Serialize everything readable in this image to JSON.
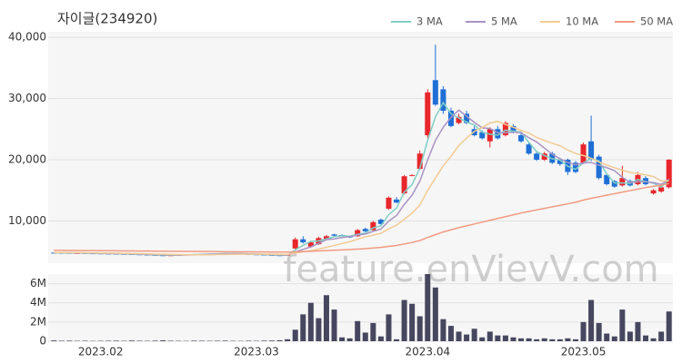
{
  "chart_data": [
    {
      "type": "candlestick",
      "title": "자이글(234920)",
      "watermark": "feature.enVievV.com",
      "up_color": "#e8262b",
      "down_color": "#1f6fd6",
      "legend": "top-right",
      "grid": true,
      "ylim": [
        3100,
        40900
      ],
      "yticks": [
        {
          "value": 10000,
          "label": "10,000"
        },
        {
          "value": 20000,
          "label": "20,000"
        },
        {
          "value": 30000,
          "label": "30,000"
        },
        {
          "value": 40000,
          "label": "40,000"
        }
      ],
      "open": [
        4820,
        4800,
        4780,
        4750,
        4760,
        4720,
        4700,
        4680,
        4650,
        4620,
        4600,
        4550,
        4500,
        4450,
        4400,
        4380,
        4400,
        4450,
        4500,
        4550,
        4600,
        4650,
        4680,
        4700,
        4650,
        4600,
        4550,
        4500,
        4450,
        4400,
        4350,
        5500,
        7000,
        5800,
        6200,
        7000,
        7800,
        7700,
        7500,
        7500,
        8700,
        8500,
        10200,
        12000,
        13500,
        14500,
        17400,
        18500,
        24000,
        33000,
        31500,
        28000,
        26000,
        27500,
        25000,
        24500,
        23000,
        25000,
        24000,
        25500,
        24000,
        22500,
        21000,
        20000,
        21000,
        20000,
        20000,
        19500,
        19500,
        23000,
        20500,
        17500,
        16500,
        15800,
        16500,
        16000,
        17000,
        14500,
        14800,
        15500
      ],
      "high": [
        4870,
        4850,
        4830,
        4800,
        4810,
        4770,
        4750,
        4730,
        4700,
        4670,
        4650,
        4600,
        4550,
        4500,
        4450,
        4450,
        4500,
        4550,
        4600,
        4650,
        4700,
        4730,
        4750,
        4750,
        4700,
        4650,
        4600,
        4550,
        4500,
        4450,
        4550,
        7300,
        7500,
        6700,
        7400,
        7700,
        7900,
        7800,
        7600,
        8700,
        8900,
        10000,
        10400,
        14000,
        13900,
        17500,
        17600,
        21500,
        31500,
        38800,
        32000,
        28500,
        27500,
        28000,
        25500,
        24800,
        25300,
        25500,
        26300,
        25800,
        24300,
        22800,
        21300,
        21300,
        21300,
        20300,
        20200,
        19800,
        22800,
        27200,
        20800,
        17800,
        16700,
        19000,
        16800,
        18000,
        17300,
        15200,
        15800,
        20100
      ],
      "low": [
        4770,
        4730,
        4700,
        4700,
        4670,
        4650,
        4630,
        4600,
        4570,
        4550,
        4500,
        4450,
        4400,
        4350,
        4330,
        4330,
        4350,
        4400,
        4450,
        4500,
        4550,
        4600,
        4630,
        4600,
        4550,
        4500,
        4450,
        4400,
        4350,
        4300,
        4300,
        5400,
        6300,
        5600,
        6100,
        6900,
        7500,
        7500,
        7200,
        7400,
        8200,
        8400,
        9400,
        11800,
        12900,
        14300,
        17300,
        18300,
        23500,
        28800,
        27500,
        25300,
        25800,
        25800,
        23800,
        23300,
        22000,
        23300,
        23800,
        24300,
        22800,
        20800,
        19800,
        19800,
        19300,
        19000,
        17500,
        17800,
        19300,
        19800,
        16800,
        15800,
        15400,
        15600,
        15600,
        15800,
        15800,
        14300,
        14600,
        15300
      ],
      "close": [
        4800,
        4780,
        4750,
        4760,
        4720,
        4700,
        4680,
        4650,
        4620,
        4600,
        4550,
        4500,
        4450,
        4400,
        4380,
        4400,
        4450,
        4500,
        4550,
        4600,
        4650,
        4680,
        4700,
        4650,
        4600,
        4550,
        4500,
        4450,
        4400,
        4350,
        4500,
        7000,
        6500,
        6500,
        7200,
        7500,
        7600,
        7600,
        7300,
        8500,
        8300,
        9800,
        9500,
        13800,
        13000,
        17300,
        17500,
        21000,
        31000,
        29000,
        28000,
        25500,
        27000,
        26000,
        24000,
        23500,
        25000,
        23500,
        26000,
        24500,
        23000,
        21000,
        20000,
        21000,
        19500,
        19300,
        18000,
        18000,
        22500,
        20000,
        17000,
        16000,
        15600,
        17000,
        15800,
        17500,
        16000,
        15000,
        15500,
        20000
      ],
      "series": [
        {
          "name": "3 MA",
          "color": "#7fcfc6",
          "values": [
            4820,
            4800,
            4777,
            4763,
            4743,
            4727,
            4700,
            4677,
            4650,
            4623,
            4590,
            4550,
            4500,
            4450,
            4410,
            4393,
            4410,
            4450,
            4500,
            4550,
            4600,
            4643,
            4677,
            4677,
            4650,
            4600,
            4550,
            4500,
            4450,
            4400,
            4417,
            5283,
            6000,
            6667,
            6733,
            7067,
            7433,
            7567,
            7500,
            7800,
            8033,
            8867,
            9200,
            11033,
            12100,
            14700,
            15933,
            18600,
            23167,
            27000,
            29333,
            27500,
            26833,
            26167,
            25667,
            24500,
            24167,
            24000,
            24833,
            24667,
            24500,
            22833,
            21333,
            20667,
            20167,
            19933,
            18933,
            18433,
            19500,
            20167,
            19833,
            17667,
            16200,
            16200,
            16133,
            16767,
            16433,
            16167,
            15500,
            16833
          ]
        },
        {
          "name": "5 MA",
          "color": "#a893c4",
          "values": [
            4830,
            4815,
            4800,
            4780,
            4762,
            4742,
            4722,
            4702,
            4674,
            4650,
            4620,
            4584,
            4544,
            4500,
            4456,
            4436,
            4436,
            4446,
            4456,
            4500,
            4550,
            4596,
            4636,
            4656,
            4656,
            4636,
            4600,
            4550,
            4500,
            4450,
            4440,
            4940,
            5350,
            5770,
            6340,
            6940,
            7060,
            7280,
            7440,
            7700,
            7860,
            8300,
            8680,
            9980,
            10880,
            12680,
            14220,
            16520,
            19960,
            23160,
            25300,
            26900,
            28100,
            27100,
            26100,
            25200,
            25100,
            24400,
            24400,
            24500,
            24400,
            23600,
            22900,
            21900,
            20900,
            20160,
            19560,
            19160,
            19460,
            19560,
            19100,
            18700,
            18220,
            17120,
            16280,
            16380,
            16380,
            16260,
            15960,
            16800
          ]
        },
        {
          "name": "10 MA",
          "color": "#f3cb94",
          "values": [
            4850,
            4840,
            4830,
            4815,
            4800,
            4785,
            4770,
            4750,
            4725,
            4700,
            4680,
            4650,
            4620,
            4590,
            4560,
            4530,
            4500,
            4480,
            4470,
            4470,
            4480,
            4500,
            4520,
            4540,
            4560,
            4580,
            4590,
            4580,
            4560,
            4540,
            4520,
            4780,
            4955,
            5135,
            5395,
            5690,
            6000,
            6315,
            6605,
            7020,
            7400,
            7680,
            7980,
            8710,
            9290,
            10270,
            11260,
            12600,
            14970,
            17020,
            18990,
            20560,
            22310,
            23530,
            24630,
            25250,
            26000,
            26250,
            25750,
            25300,
            24800,
            24350,
            23650,
            23150,
            22700,
            22280,
            21580,
            21030,
            20680,
            20230,
            19630,
            19130,
            18690,
            18290,
            17920,
            17740,
            17540,
            17240,
            16540,
            16540
          ]
        },
        {
          "name": "50 MA",
          "color": "#f29a80",
          "values": [
            5200,
            5190,
            5180,
            5170,
            5160,
            5150,
            5140,
            5130,
            5120,
            5110,
            5100,
            5090,
            5080,
            5070,
            5060,
            5050,
            5040,
            5030,
            5020,
            5010,
            5000,
            4990,
            4980,
            4970,
            4960,
            4950,
            4940,
            4930,
            4920,
            4910,
            4910,
            4960,
            5000,
            5040,
            5100,
            5150,
            5210,
            5270,
            5330,
            5400,
            5480,
            5580,
            5680,
            5840,
            5990,
            6240,
            6480,
            6800,
            7300,
            7750,
            8200,
            8550,
            8900,
            9200,
            9500,
            9800,
            10100,
            10400,
            10700,
            11000,
            11300,
            11550,
            11800,
            12050,
            12300,
            12550,
            12800,
            13050,
            13400,
            13700,
            13950,
            14200,
            14450,
            14700,
            14950,
            15200,
            15450,
            15650,
            15850,
            16100
          ]
        }
      ]
    },
    {
      "type": "bar",
      "color": "#46475f",
      "ylim": [
        0,
        7000000
      ],
      "grid": true,
      "yticks": [
        0,
        {
          "value": 2000000,
          "label": "2M"
        },
        {
          "value": 4000000,
          "label": "4M"
        },
        {
          "value": 6000000,
          "label": "6M"
        }
      ],
      "categories": [
        null,
        null,
        null,
        null,
        null,
        null,
        "2023.02",
        null,
        null,
        null,
        null,
        null,
        null,
        null,
        null,
        null,
        null,
        null,
        null,
        null,
        null,
        null,
        null,
        null,
        null,
        null,
        "2023.03",
        null,
        null,
        null,
        null,
        null,
        null,
        null,
        null,
        null,
        null,
        null,
        null,
        null,
        null,
        null,
        null,
        null,
        null,
        null,
        null,
        null,
        "2023.04",
        null,
        null,
        null,
        null,
        null,
        null,
        null,
        null,
        null,
        null,
        null,
        null,
        null,
        null,
        null,
        null,
        null,
        null,
        null,
        "2023.05",
        null,
        null,
        null,
        null,
        null,
        null,
        null,
        null,
        null,
        null,
        null
      ],
      "values": [
        80000,
        50000,
        60000,
        40000,
        50000,
        30000,
        40000,
        50000,
        60000,
        40000,
        70000,
        50000,
        40000,
        60000,
        90000,
        50000,
        40000,
        30000,
        60000,
        50000,
        40000,
        50000,
        60000,
        40000,
        30000,
        50000,
        40000,
        60000,
        70000,
        100000,
        200000,
        1200000,
        2800000,
        4000000,
        2400000,
        4800000,
        3300000,
        400000,
        300000,
        2100000,
        900000,
        1900000,
        500000,
        2800000,
        200000,
        4300000,
        3900000,
        2600000,
        7000000,
        5600000,
        2300000,
        1600000,
        1000000,
        700000,
        1300000,
        400000,
        1000000,
        600000,
        600000,
        400000,
        300000,
        300000,
        200000,
        300000,
        200000,
        200000,
        300000,
        200000,
        2000000,
        4300000,
        1900000,
        800000,
        500000,
        3300000,
        1000000,
        2000000,
        600000,
        300000,
        1000000,
        3100000
      ]
    }
  ]
}
